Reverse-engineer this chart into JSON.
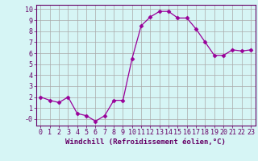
{
  "x": [
    0,
    1,
    2,
    3,
    4,
    5,
    6,
    7,
    8,
    9,
    10,
    11,
    12,
    13,
    14,
    15,
    16,
    17,
    18,
    19,
    20,
    21,
    22,
    23
  ],
  "y": [
    2.0,
    1.7,
    1.5,
    2.0,
    0.5,
    0.3,
    -0.2,
    0.3,
    1.7,
    1.7,
    5.5,
    8.5,
    9.3,
    9.8,
    9.8,
    9.2,
    9.2,
    8.2,
    7.0,
    5.8,
    5.8,
    6.3,
    6.2,
    6.3
  ],
  "line_color": "#990099",
  "marker": "D",
  "marker_size": 2.5,
  "bg_color": "#d6f5f5",
  "grid_color": "#aaaaaa",
  "xlabel": "Windchill (Refroidissement éolien,°C)",
  "xlim": [
    -0.5,
    23.5
  ],
  "ylim": [
    -0.6,
    10.4
  ],
  "yticks": [
    0,
    1,
    2,
    3,
    4,
    5,
    6,
    7,
    8,
    9,
    10
  ],
  "xticks": [
    0,
    1,
    2,
    3,
    4,
    5,
    6,
    7,
    8,
    9,
    10,
    11,
    12,
    13,
    14,
    15,
    16,
    17,
    18,
    19,
    20,
    21,
    22,
    23
  ],
  "xlabel_fontsize": 6.5,
  "tick_fontsize": 6.0,
  "tick_color": "#660066",
  "axis_label_color": "#660066",
  "spine_color": "#660066"
}
